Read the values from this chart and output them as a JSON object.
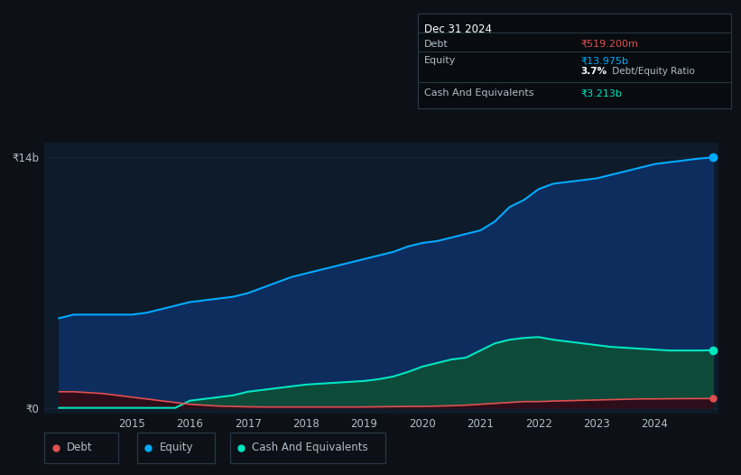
{
  "bg_color": "#0d1117",
  "plot_bg_color": "#0d1b2a",
  "years": [
    2013.75,
    2014.0,
    2014.25,
    2014.5,
    2014.75,
    2015.0,
    2015.25,
    2015.5,
    2015.75,
    2016.0,
    2016.25,
    2016.5,
    2016.75,
    2017.0,
    2017.25,
    2017.5,
    2017.75,
    2018.0,
    2018.25,
    2018.5,
    2018.75,
    2019.0,
    2019.25,
    2019.5,
    2019.75,
    2020.0,
    2020.25,
    2020.5,
    2020.75,
    2021.0,
    2021.25,
    2021.5,
    2021.75,
    2022.0,
    2022.25,
    2022.5,
    2022.75,
    2023.0,
    2023.25,
    2023.5,
    2023.75,
    2024.0,
    2024.25,
    2024.5,
    2024.75,
    2025.0
  ],
  "equity": [
    5.0,
    5.2,
    5.2,
    5.2,
    5.2,
    5.2,
    5.3,
    5.5,
    5.7,
    5.9,
    6.0,
    6.1,
    6.2,
    6.4,
    6.7,
    7.0,
    7.3,
    7.5,
    7.7,
    7.9,
    8.1,
    8.3,
    8.5,
    8.7,
    9.0,
    9.2,
    9.3,
    9.5,
    9.7,
    9.9,
    10.4,
    11.2,
    11.6,
    12.2,
    12.5,
    12.6,
    12.7,
    12.8,
    13.0,
    13.2,
    13.4,
    13.6,
    13.7,
    13.8,
    13.9,
    13.975
  ],
  "cash": [
    0.0,
    0.0,
    0.0,
    0.0,
    0.0,
    0.0,
    0.0,
    0.0,
    0.0,
    0.4,
    0.5,
    0.6,
    0.7,
    0.9,
    1.0,
    1.1,
    1.2,
    1.3,
    1.35,
    1.4,
    1.45,
    1.5,
    1.6,
    1.75,
    2.0,
    2.3,
    2.5,
    2.7,
    2.8,
    3.2,
    3.6,
    3.8,
    3.9,
    3.95,
    3.8,
    3.7,
    3.6,
    3.5,
    3.4,
    3.35,
    3.3,
    3.25,
    3.2,
    3.2,
    3.2,
    3.213
  ],
  "debt": [
    0.9,
    0.9,
    0.85,
    0.8,
    0.7,
    0.6,
    0.5,
    0.4,
    0.3,
    0.2,
    0.15,
    0.1,
    0.08,
    0.06,
    0.05,
    0.05,
    0.05,
    0.05,
    0.05,
    0.05,
    0.05,
    0.05,
    0.06,
    0.07,
    0.08,
    0.08,
    0.1,
    0.12,
    0.15,
    0.2,
    0.25,
    0.3,
    0.35,
    0.35,
    0.38,
    0.4,
    0.42,
    0.44,
    0.46,
    0.48,
    0.5,
    0.5,
    0.51,
    0.515,
    0.518,
    0.5192
  ],
  "ylim_min": -0.3,
  "ylim_max": 14.8,
  "xlim_min": 2013.5,
  "xlim_max": 2025.1,
  "ytick_positions": [
    0,
    14
  ],
  "ytick_labels": [
    "₹0",
    "₹14b"
  ],
  "xtick_positions": [
    2015,
    2016,
    2017,
    2018,
    2019,
    2020,
    2021,
    2022,
    2023,
    2024
  ],
  "xtick_labels": [
    "2015",
    "2016",
    "2017",
    "2018",
    "2019",
    "2020",
    "2021",
    "2022",
    "2023",
    "2024"
  ],
  "equity_color": "#00aaff",
  "cash_color": "#00e5c0",
  "debt_color": "#e05050",
  "equity_fill": "#0d2d5e",
  "cash_fill": "#0d4a3a",
  "debt_fill": "#2e0d1a",
  "grid_color": "#1a2535",
  "text_color": "#b0bcc8",
  "axis_line_color": "#1a2535",
  "legend_bg": "#10181f",
  "legend_border": "#2a3a4a",
  "info_bg": "#080c10",
  "info_border": "#2a3a4a",
  "info_title": "Dec 31 2024",
  "info_debt_label": "Debt",
  "info_debt_value": "₹519.200m",
  "info_equity_label": "Equity",
  "info_equity_value": "₹13.975b",
  "info_ratio": "3.7%",
  "info_ratio_suffix": " Debt/Equity Ratio",
  "info_cash_label": "Cash And Equivalents",
  "info_cash_value": "₹3.213b"
}
